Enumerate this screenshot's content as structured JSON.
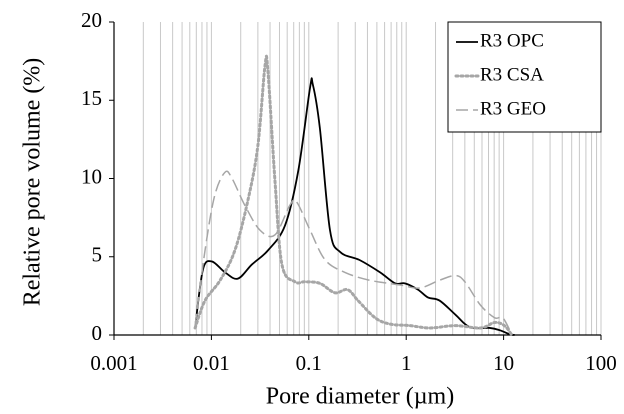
{
  "chart_data": {
    "type": "line",
    "xlabel": "Pore diameter (µm)",
    "ylabel": "Relative pore volume (%)",
    "xscale": "log",
    "xlim": [
      0.001,
      100
    ],
    "xticks": [
      0.001,
      0.01,
      0.1,
      1,
      10,
      100
    ],
    "ylim": [
      0,
      20
    ],
    "yticks": [
      0,
      5,
      10,
      15,
      20
    ],
    "xgrid": true,
    "xgrid_minor": true,
    "legend": "upper right",
    "series": [
      {
        "name": "R3 OPC",
        "color": "#000000",
        "dash": "solid",
        "x": [
          0.0069,
          0.0082,
          0.0101,
          0.0138,
          0.0187,
          0.026,
          0.038,
          0.057,
          0.078,
          0.103,
          0.11,
          0.13,
          0.165,
          0.21,
          0.33,
          0.54,
          0.77,
          0.97,
          1.32,
          1.67,
          2.2,
          3.2,
          4.5,
          7.2,
          9.2,
          11.5,
          13
        ],
        "values": [
          0.8,
          4.2,
          4.7,
          4.0,
          3.6,
          4.5,
          5.4,
          7.0,
          10.5,
          15.8,
          16.0,
          13.2,
          6.7,
          5.3,
          4.8,
          4.0,
          3.3,
          3.3,
          2.9,
          2.4,
          2.2,
          1.3,
          0.5,
          0.45,
          0.3,
          0.05,
          0
        ]
      },
      {
        "name": "R3 CSA",
        "color": "#a6a6a6",
        "dash": "dotted",
        "x": [
          0.0068,
          0.0086,
          0.0123,
          0.0174,
          0.0237,
          0.03,
          0.0355,
          0.038,
          0.045,
          0.053,
          0.072,
          0.091,
          0.13,
          0.185,
          0.25,
          0.32,
          0.48,
          0.68,
          1.09,
          1.75,
          3.2,
          5.8,
          8.1,
          10.2,
          12
        ],
        "values": [
          0.45,
          2.2,
          3.5,
          5.4,
          8.6,
          12.1,
          17.2,
          16.9,
          9.8,
          4.5,
          3.4,
          3.4,
          3.3,
          2.7,
          2.9,
          2.2,
          1.1,
          0.7,
          0.6,
          0.45,
          0.6,
          0.45,
          0.8,
          0.6,
          0.05
        ]
      },
      {
        "name": "R3 GEO",
        "color": "#a6a6a6",
        "dash": "dashed",
        "x": [
          0.0068,
          0.0086,
          0.0108,
          0.0138,
          0.0163,
          0.022,
          0.0315,
          0.045,
          0.064,
          0.075,
          0.103,
          0.147,
          0.235,
          0.42,
          0.86,
          1.37,
          2.2,
          3.2,
          4.0,
          5.8,
          8.1,
          9.8,
          12
        ],
        "values": [
          0.6,
          5.4,
          8.9,
          10.4,
          10.0,
          8.3,
          6.7,
          6.4,
          8.3,
          8.5,
          6.7,
          4.8,
          4.0,
          3.5,
          3.2,
          3.0,
          3.5,
          3.8,
          3.4,
          1.9,
          1.1,
          1.1,
          0.1
        ]
      }
    ]
  }
}
